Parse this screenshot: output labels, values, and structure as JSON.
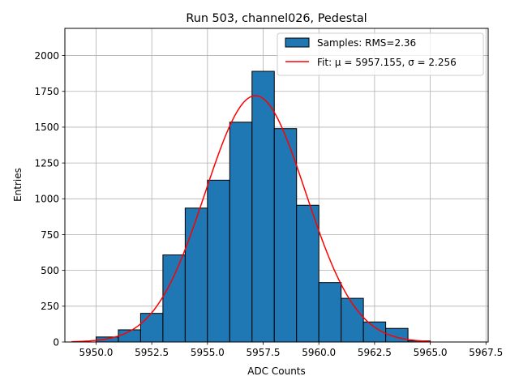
{
  "chart_data": {
    "type": "bar",
    "title": "Run 503, channel026, Pedestal",
    "xlabel": "ADC Counts",
    "ylabel": "Entries",
    "xlim": [
      5948.6,
      5967.6
    ],
    "ylim": [
      0,
      2190
    ],
    "xticks": [
      5950.0,
      5952.5,
      5955.0,
      5957.5,
      5960.0,
      5962.5,
      5965.0,
      5967.5
    ],
    "xtick_labels": [
      "5950.0",
      "5952.5",
      "5955.0",
      "5957.5",
      "5960.0",
      "5962.5",
      "5965.0",
      "5967.5"
    ],
    "yticks": [
      0,
      250,
      500,
      750,
      1000,
      1250,
      1500,
      1750,
      2000
    ],
    "ytick_labels": [
      "0",
      "250",
      "500",
      "750",
      "1000",
      "1250",
      "1500",
      "1750",
      "2000"
    ],
    "grid": true,
    "legend_position": "top-right",
    "series": [
      {
        "name": "Samples",
        "kind": "histogram",
        "legend_label": "Samples: RMS=2.36",
        "color": "#1f77b4",
        "edge_color": "#000000",
        "bin_edges": [
          5950,
          5951,
          5952,
          5953,
          5954,
          5955,
          5956,
          5957,
          5958,
          5959,
          5960,
          5961,
          5962,
          5963,
          5964,
          5965,
          5966,
          5967
        ],
        "counts": [
          35,
          85,
          200,
          608,
          935,
          1130,
          1535,
          1890,
          1490,
          955,
          415,
          305,
          140,
          95,
          8,
          0,
          0
        ]
      },
      {
        "name": "Fit",
        "kind": "gaussian",
        "legend_label": "Fit: μ = 5957.155, σ = 2.256",
        "color": "#ff0000",
        "mu": 5957.155,
        "sigma": 2.256,
        "amplitude": 1720,
        "x_range": [
          5948.9,
          5965.0
        ]
      }
    ]
  }
}
